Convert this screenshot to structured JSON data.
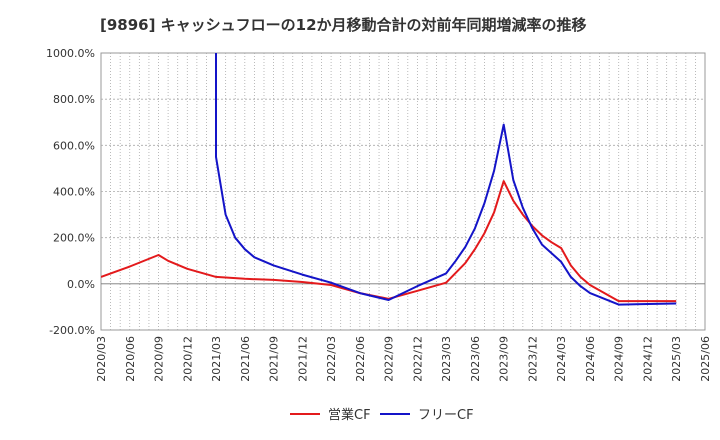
{
  "chart_data": {
    "type": "line",
    "title": "[9896]  キャッシュフローの12か月移動合計の対前年同期増減率の推移",
    "ylim": [
      -200,
      1000
    ],
    "y_ticks": [
      -200,
      0,
      200,
      400,
      600,
      800,
      1000
    ],
    "y_tick_labels": [
      "-200.0%",
      "0.0%",
      "200.0%",
      "400.0%",
      "600.0%",
      "800.0%",
      "1000.0%"
    ],
    "x_tick_labels": [
      "2020/03",
      "2020/06",
      "2020/09",
      "2020/12",
      "2021/03",
      "2021/06",
      "2021/09",
      "2021/12",
      "2022/03",
      "2022/06",
      "2022/09",
      "2022/12",
      "2023/03",
      "2023/06",
      "2023/09",
      "2023/12",
      "2024/03",
      "2024/06",
      "2024/09",
      "2024/12",
      "2025/03",
      "2025/06"
    ],
    "grid": true,
    "legend_position": "bottom",
    "series": [
      {
        "name": "営業CF",
        "color": "#e31a1c",
        "points": [
          [
            "2020/03",
            30
          ],
          [
            "2020/06",
            75
          ],
          [
            "2020/09",
            125
          ],
          [
            "2020/10",
            100
          ],
          [
            "2020/12",
            65
          ],
          [
            "2021/03",
            30
          ],
          [
            "2021/06",
            22
          ],
          [
            "2021/09",
            17
          ],
          [
            "2021/12",
            8
          ],
          [
            "2022/03",
            -5
          ],
          [
            "2022/06",
            -40
          ],
          [
            "2022/09",
            -65
          ],
          [
            "2022/12",
            -30
          ],
          [
            "2023/03",
            5
          ],
          [
            "2023/05",
            90
          ],
          [
            "2023/06",
            150
          ],
          [
            "2023/07",
            220
          ],
          [
            "2023/08",
            310
          ],
          [
            "2023/09",
            445
          ],
          [
            "2023/10",
            360
          ],
          [
            "2023/11",
            300
          ],
          [
            "2023/12",
            250
          ],
          [
            "2024/01",
            210
          ],
          [
            "2024/02",
            180
          ],
          [
            "2024/03",
            155
          ],
          [
            "2024/04",
            80
          ],
          [
            "2024/05",
            30
          ],
          [
            "2024/06",
            -5
          ],
          [
            "2024/09",
            -75
          ],
          [
            "2025/03",
            -75
          ]
        ]
      },
      {
        "name": "フリーCF",
        "color": "#1414c8",
        "points": [
          [
            "2021/03",
            1000
          ],
          [
            "2021/03",
            550
          ],
          [
            "2021/04",
            300
          ],
          [
            "2021/05",
            200
          ],
          [
            "2021/06",
            150
          ],
          [
            "2021/07",
            115
          ],
          [
            "2021/09",
            80
          ],
          [
            "2021/12",
            40
          ],
          [
            "2022/03",
            5
          ],
          [
            "2022/06",
            -40
          ],
          [
            "2022/09",
            -70
          ],
          [
            "2022/12",
            -10
          ],
          [
            "2023/03",
            45
          ],
          [
            "2023/04",
            100
          ],
          [
            "2023/05",
            160
          ],
          [
            "2023/06",
            240
          ],
          [
            "2023/07",
            350
          ],
          [
            "2023/08",
            490
          ],
          [
            "2023/09",
            690
          ],
          [
            "2023/10",
            450
          ],
          [
            "2023/11",
            330
          ],
          [
            "2023/12",
            240
          ],
          [
            "2024/01",
            170
          ],
          [
            "2024/03",
            95
          ],
          [
            "2024/04",
            30
          ],
          [
            "2024/05",
            -10
          ],
          [
            "2024/06",
            -40
          ],
          [
            "2024/09",
            -90
          ],
          [
            "2025/03",
            -85
          ]
        ]
      }
    ]
  }
}
